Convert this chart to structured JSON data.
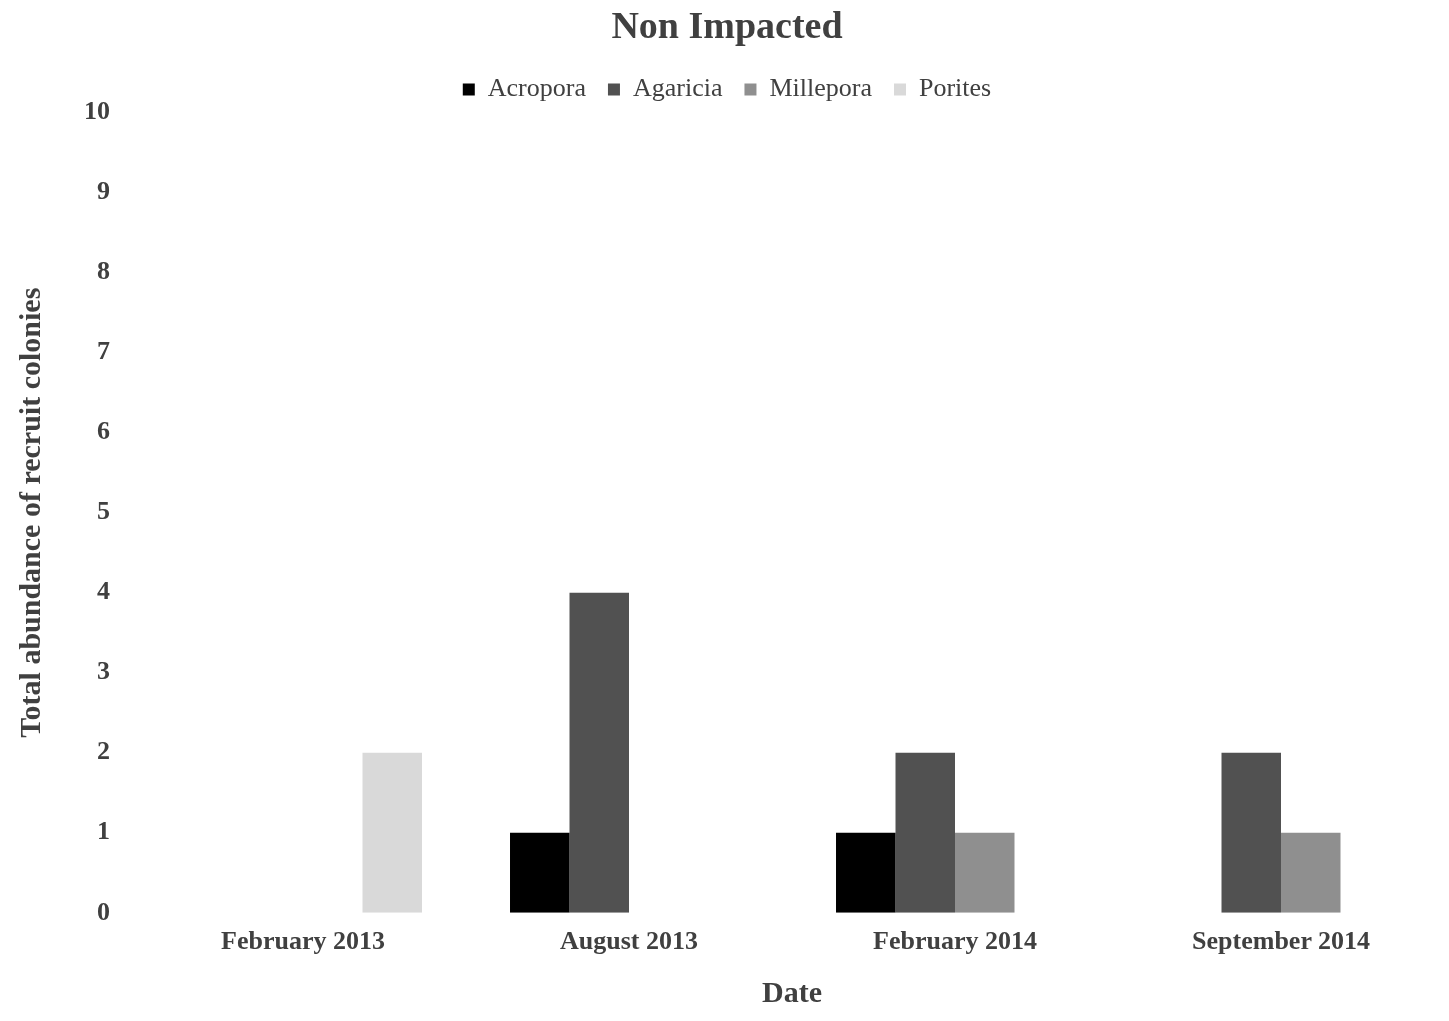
{
  "chart_data": {
    "type": "bar",
    "title": "Non Impacted",
    "xlabel": "Date",
    "ylabel": "Total abundance of recruit colonies",
    "categories": [
      "February 2013",
      "August 2013",
      "February 2014",
      "September 2014"
    ],
    "series": [
      {
        "name": "Acropora",
        "color": "#000000",
        "values": [
          0,
          1,
          1,
          0
        ]
      },
      {
        "name": "Agaricia",
        "color": "#515151",
        "values": [
          0,
          4,
          2,
          2
        ]
      },
      {
        "name": "Millepora",
        "color": "#8f8f8f",
        "values": [
          0,
          0,
          1,
          1
        ]
      },
      {
        "name": "Porites",
        "color": "#d9d9d9",
        "values": [
          2,
          0,
          0,
          0
        ]
      }
    ],
    "ylim": [
      0,
      10
    ],
    "yticks": [
      0,
      1,
      2,
      3,
      4,
      5,
      6,
      7,
      8,
      9,
      10
    ],
    "grid": false,
    "legend": "top"
  }
}
